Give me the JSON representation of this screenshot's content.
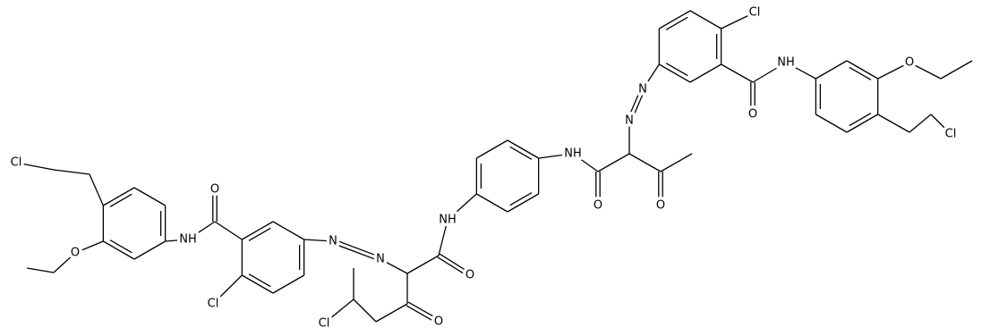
{
  "atoms": [
    {
      "label": "Cl"
    },
    {
      "label": "O"
    },
    {
      "label": "NH"
    },
    {
      "label": "O"
    },
    {
      "label": "Cl"
    },
    {
      "label": "N"
    },
    {
      "label": "N"
    },
    {
      "label": "O"
    },
    {
      "label": "NH"
    },
    {
      "label": "O"
    },
    {
      "label": "Cl"
    },
    {
      "label": "NH"
    },
    {
      "label": "O"
    },
    {
      "label": "O"
    },
    {
      "label": "N"
    },
    {
      "label": "N"
    },
    {
      "label": "Cl"
    },
    {
      "label": "O"
    },
    {
      "label": "NH"
    },
    {
      "label": "O"
    },
    {
      "label": "Cl"
    }
  ]
}
